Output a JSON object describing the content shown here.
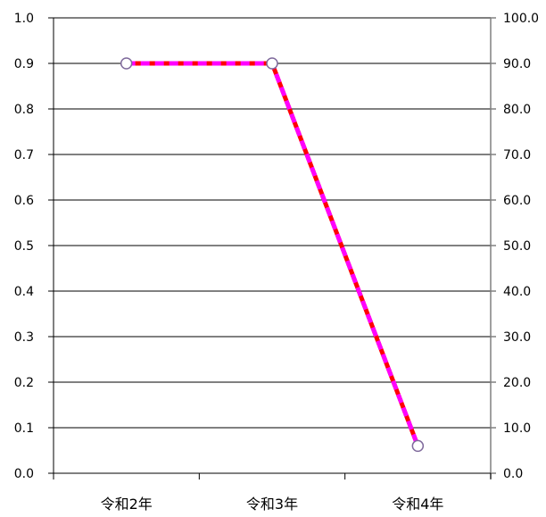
{
  "chart_data": {
    "type": "line",
    "categories": [
      "令和2年",
      "令和3年",
      "令和4年"
    ],
    "series": [
      {
        "values": [
          0.9,
          0.9,
          0.06
        ],
        "axis": "left"
      },
      {
        "values": [
          90.0,
          90.0,
          6.0
        ],
        "axis": "right"
      }
    ],
    "yleft": {
      "lim": [
        0,
        1.0
      ],
      "ticks": [
        "0.0",
        "0.1",
        "0.2",
        "0.3",
        "0.4",
        "0.5",
        "0.6",
        "0.7",
        "0.8",
        "0.9",
        "1.0"
      ]
    },
    "yright": {
      "lim": [
        0,
        100.0
      ],
      "ticks": [
        "0.0",
        "10.0",
        "20.0",
        "30.0",
        "40.0",
        "50.0",
        "60.0",
        "70.0",
        "80.0",
        "90.0",
        "100.0"
      ]
    },
    "grid": true,
    "title": "",
    "xlabel": "",
    "ylabel": "",
    "colors": {
      "series_left": "#ff0000",
      "series_right": "#ff00ff",
      "marker_fill": "#ffffff",
      "marker_stroke": "#7f6a9c",
      "axis_left": "#000000",
      "axis_right": "#808080",
      "grid": "#000000"
    }
  }
}
